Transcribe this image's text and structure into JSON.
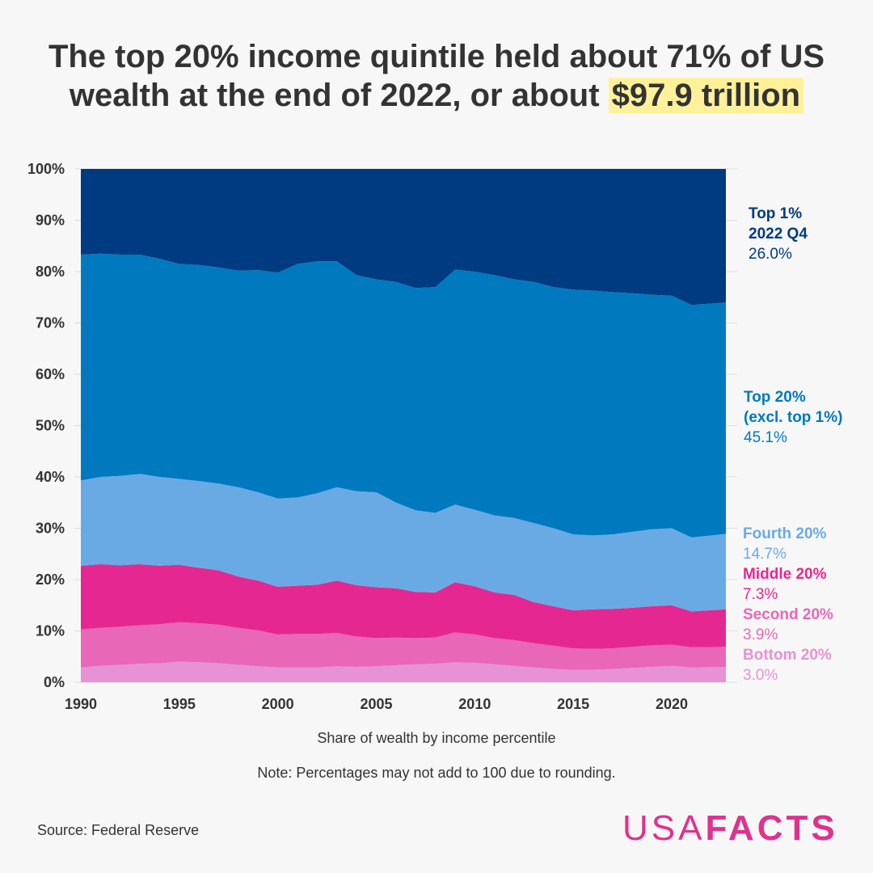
{
  "title": {
    "line1": "The top 20% income quintile held about 71% of US",
    "line2_prefix": "wealth at the end of 2022, or about ",
    "highlight": "$97.9 trillion",
    "highlight_color": "#fff19a"
  },
  "chart_data": {
    "type": "area",
    "stacked": true,
    "xlabel": "Share of wealth by income percentile",
    "note": "Note: Percentages may not add to 100 due to rounding.",
    "xlim": [
      1990,
      2022.75
    ],
    "ylim": [
      0,
      100
    ],
    "x_ticks": [
      "1990",
      "1995",
      "2000",
      "2005",
      "2010",
      "2015",
      "2020"
    ],
    "y_ticks": [
      "0%",
      "10%",
      "20%",
      "30%",
      "40%",
      "50%",
      "60%",
      "70%",
      "80%",
      "90%",
      "100%"
    ],
    "grid": true,
    "x": [
      1990,
      1991,
      1992,
      1993,
      1994,
      1995,
      1996,
      1997,
      1998,
      1999,
      2000,
      2001,
      2002,
      2003,
      2004,
      2005,
      2006,
      2007,
      2008,
      2009,
      2010,
      2011,
      2012,
      2013,
      2014,
      2015,
      2016,
      2017,
      2018,
      2019,
      2020,
      2021,
      2022.75
    ],
    "series": [
      {
        "name": "Bottom 20%",
        "color": "#e692d4",
        "label_value": "3.0%",
        "values": [
          2.9,
          3.2,
          3.4,
          3.6,
          3.7,
          4.0,
          3.9,
          3.7,
          3.4,
          3.1,
          2.9,
          2.9,
          2.9,
          3.1,
          3.0,
          3.1,
          3.3,
          3.5,
          3.6,
          3.9,
          3.8,
          3.5,
          3.2,
          2.9,
          2.6,
          2.4,
          2.4,
          2.6,
          2.8,
          3.0,
          3.2,
          2.9,
          3.0
        ]
      },
      {
        "name": "Second 20%",
        "color": "#e867b6",
        "label_value": "3.9%",
        "values": [
          7.4,
          7.4,
          7.4,
          7.5,
          7.6,
          7.7,
          7.6,
          7.5,
          7.2,
          7.0,
          6.4,
          6.5,
          6.5,
          6.5,
          5.9,
          5.5,
          5.4,
          5.1,
          5.1,
          5.8,
          5.5,
          5.1,
          5.0,
          4.7,
          4.5,
          4.2,
          4.1,
          4.0,
          4.1,
          4.2,
          4.1,
          3.9,
          3.9
        ]
      },
      {
        "name": "Middle 20%",
        "color": "#e52891",
        "label_value": "7.3%",
        "values": [
          12.4,
          12.4,
          12.0,
          11.9,
          11.4,
          11.2,
          10.8,
          10.6,
          10.0,
          9.7,
          9.3,
          9.4,
          9.6,
          10.2,
          10.0,
          9.9,
          9.6,
          9.0,
          8.8,
          9.8,
          9.4,
          8.9,
          8.8,
          8.0,
          7.7,
          7.4,
          7.7,
          7.7,
          7.6,
          7.6,
          7.7,
          7.0,
          7.3
        ]
      },
      {
        "name": "Fourth 20%",
        "color": "#6aaae4",
        "label_value": "14.7%",
        "values": [
          16.6,
          17.0,
          17.4,
          17.6,
          17.3,
          16.7,
          16.9,
          16.9,
          17.4,
          17.2,
          17.2,
          17.2,
          17.8,
          18.2,
          18.3,
          18.5,
          16.7,
          15.9,
          15.5,
          15.1,
          14.9,
          15.0,
          15.0,
          15.4,
          15.2,
          14.8,
          14.4,
          14.5,
          14.8,
          15.0,
          15.0,
          14.4,
          14.7
        ]
      },
      {
        "name": "Top 20% (excl. top 1%)",
        "label_lines": [
          "Top 20%",
          "(excl. top 1%)"
        ],
        "color": "#0079bf",
        "label_value": "45.1%",
        "values": [
          44.0,
          43.5,
          43.1,
          42.7,
          42.5,
          41.9,
          42.1,
          42.1,
          42.2,
          43.3,
          44.0,
          45.5,
          45.2,
          44.0,
          42.1,
          41.5,
          43.0,
          43.3,
          44.0,
          45.8,
          46.4,
          46.8,
          46.5,
          47.0,
          47.0,
          47.7,
          47.7,
          47.2,
          46.5,
          45.7,
          45.3,
          45.3,
          45.1
        ]
      },
      {
        "name": "Top 1%",
        "label_lines": [
          "Top 1%",
          "2022 Q4"
        ],
        "color": "#003a80",
        "label_value": "26.0%",
        "values": [
          16.7,
          16.5,
          16.7,
          16.7,
          17.5,
          18.5,
          18.7,
          19.2,
          19.8,
          19.7,
          20.2,
          18.5,
          18.0,
          18.0,
          20.7,
          21.5,
          22.0,
          23.2,
          23.0,
          19.6,
          20.0,
          20.7,
          21.5,
          22.0,
          23.0,
          23.5,
          23.7,
          24.0,
          24.2,
          24.5,
          24.7,
          26.5,
          26.0
        ]
      }
    ]
  },
  "footer": {
    "source": "Source: Federal Reserve",
    "logo_usa": "USA",
    "logo_facts": "FACTS"
  }
}
